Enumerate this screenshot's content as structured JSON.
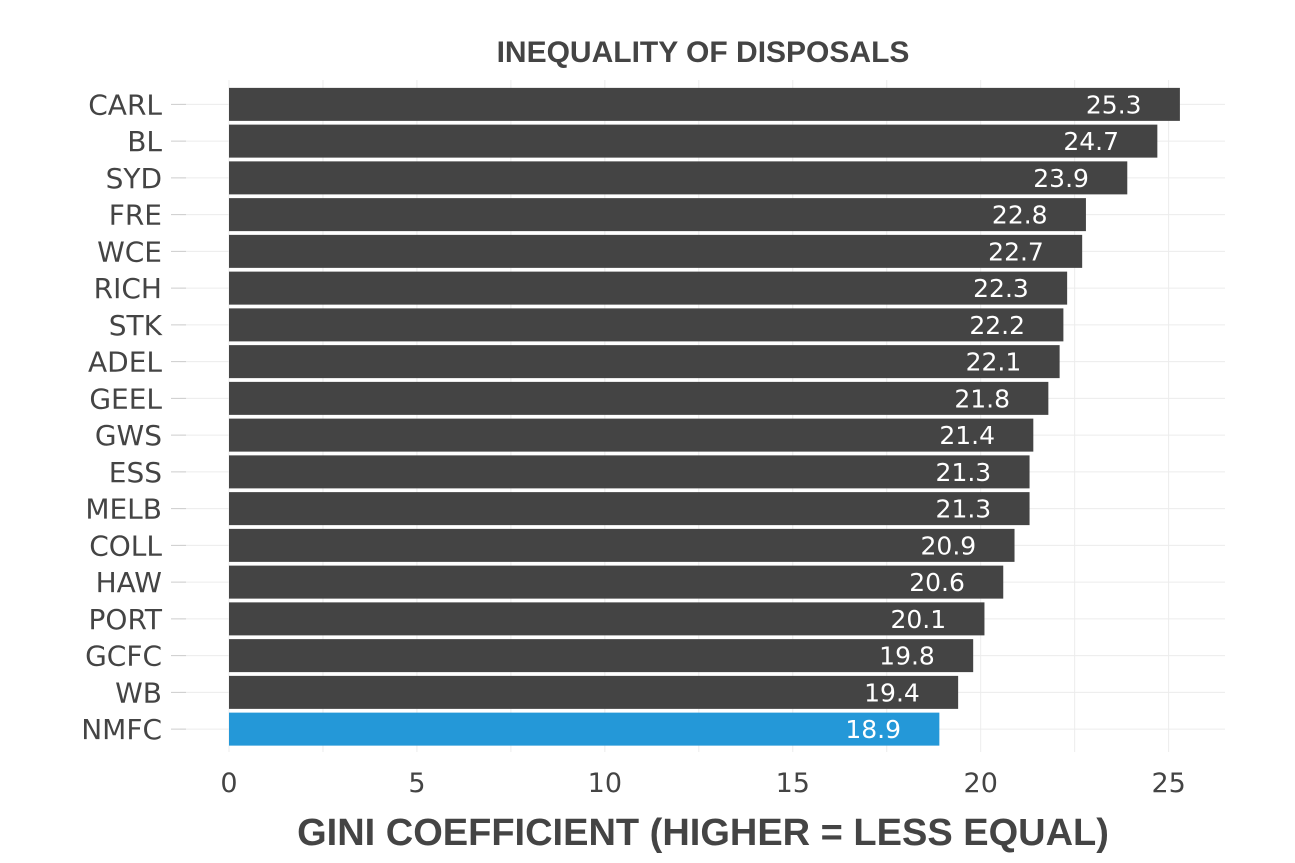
{
  "chart_data": {
    "type": "bar",
    "orientation": "horizontal",
    "title": "INEQUALITY OF DISPOSALS",
    "xlabel": "GINI COEFFICIENT  (HIGHER = LESS EQUAL)",
    "ylabel": "",
    "xlim": [
      0,
      26.5
    ],
    "xticks": [
      0,
      5,
      10,
      15,
      20,
      25
    ],
    "grid": true,
    "categories": [
      "CARL",
      "BL",
      "SYD",
      "FRE",
      "WCE",
      "RICH",
      "STK",
      "ADEL",
      "GEEL",
      "GWS",
      "ESS",
      "MELB",
      "COLL",
      "HAW",
      "PORT",
      "GCFC",
      "WB",
      "NMFC"
    ],
    "values": [
      25.3,
      24.7,
      23.9,
      22.8,
      22.7,
      22.3,
      22.2,
      22.1,
      21.8,
      21.4,
      21.3,
      21.3,
      20.9,
      20.6,
      20.1,
      19.8,
      19.4,
      18.9
    ],
    "value_labels": [
      "25.3",
      "24.7",
      "23.9",
      "22.8",
      "22.7",
      "22.3",
      "22.2",
      "22.1",
      "21.8",
      "21.4",
      "21.3",
      "21.3",
      "20.9",
      "20.6",
      "20.1",
      "19.8",
      "19.4",
      "18.9"
    ],
    "highlight_category": "NMFC",
    "colors": {
      "bar": "#444444",
      "highlight": "#2498d8",
      "label": "#ffffff",
      "text": "#444444",
      "grid": "#ececec"
    }
  }
}
